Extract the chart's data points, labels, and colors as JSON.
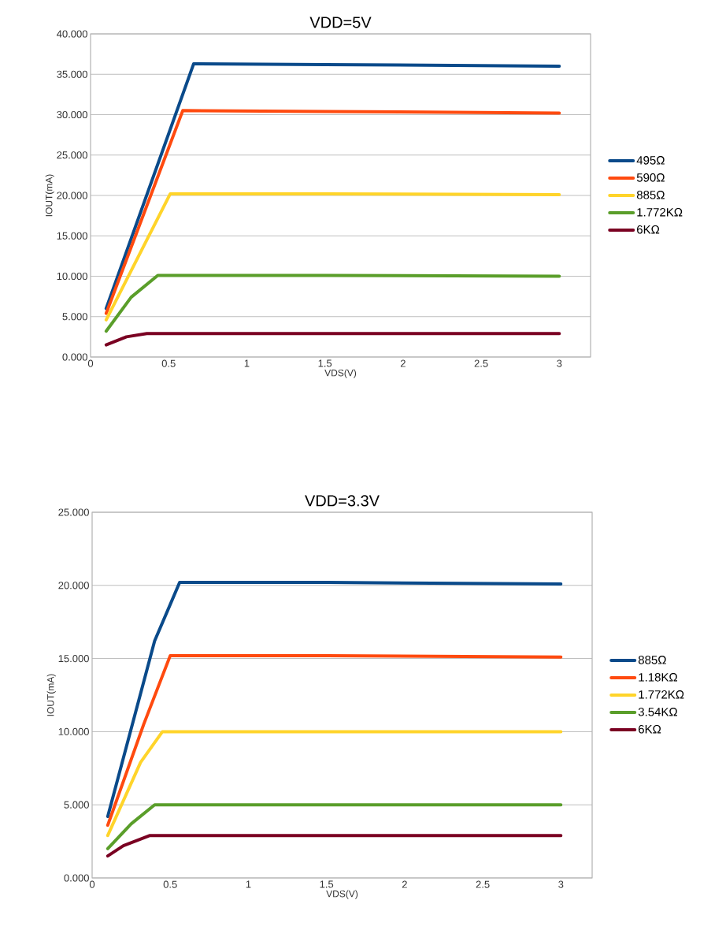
{
  "chart_data": [
    {
      "type": "line",
      "title": "VDD=5V",
      "xlabel": "VDS(V)",
      "ylabel": "IOUT(mA)",
      "xlim": [
        0,
        3.2
      ],
      "ylim": [
        0,
        40
      ],
      "xticks": [
        0,
        0.5,
        1,
        1.5,
        2,
        2.5,
        3
      ],
      "yticks": [
        {
          "value": 0,
          "label": "0.000"
        },
        {
          "value": 5,
          "label": "5.000"
        },
        {
          "value": 10,
          "label": "10.000"
        },
        {
          "value": 15,
          "label": "15.000"
        },
        {
          "value": 20,
          "label": "20.000"
        },
        {
          "value": 25,
          "label": "25.000"
        },
        {
          "value": 30,
          "label": "30.000"
        },
        {
          "value": 35,
          "label": "35.000"
        },
        {
          "value": 40,
          "label": "40.000"
        }
      ],
      "grid": "y",
      "legend": "right",
      "marker": "none",
      "line_style": "solid",
      "series": [
        {
          "name": "495Ω",
          "color": "#0a4a8a",
          "x": [
            0.1,
            0.66,
            1.5,
            3
          ],
          "values": [
            6.0,
            36.3,
            36.2,
            36.0
          ]
        },
        {
          "name": "590Ω",
          "color": "#ff4a0f",
          "x": [
            0.1,
            0.59,
            1.5,
            3
          ],
          "values": [
            5.4,
            30.5,
            30.4,
            30.2
          ]
        },
        {
          "name": "885Ω",
          "color": "#ffd42a",
          "x": [
            0.1,
            0.51,
            1.5,
            3
          ],
          "values": [
            4.6,
            20.2,
            20.2,
            20.1
          ]
        },
        {
          "name": "1.772KΩ",
          "color": "#5a9e2a",
          "x": [
            0.1,
            0.26,
            0.43,
            1.5,
            3
          ],
          "values": [
            3.2,
            7.4,
            10.1,
            10.1,
            10.0
          ]
        },
        {
          "name": "6KΩ",
          "color": "#7a0022",
          "x": [
            0.1,
            0.23,
            0.36,
            1.5,
            3
          ],
          "values": [
            1.5,
            2.5,
            2.9,
            2.9,
            2.9
          ]
        }
      ]
    },
    {
      "type": "line",
      "title": "VDD=3.3V",
      "xlabel": "VDS(V)",
      "ylabel": "IOUT(mA)",
      "xlim": [
        0,
        3.2
      ],
      "ylim": [
        0,
        25
      ],
      "xticks": [
        0,
        0.5,
        1,
        1.5,
        2,
        2.5,
        3
      ],
      "yticks": [
        {
          "value": 0,
          "label": "0.000"
        },
        {
          "value": 5,
          "label": "5.000"
        },
        {
          "value": 10,
          "label": "10.000"
        },
        {
          "value": 15,
          "label": "15.000"
        },
        {
          "value": 20,
          "label": "20.000"
        },
        {
          "value": 25,
          "label": "25.000"
        }
      ],
      "grid": "y",
      "legend": "right",
      "marker": "none",
      "line_style": "solid",
      "series": [
        {
          "name": "885Ω",
          "color": "#0a4a8a",
          "x": [
            0.1,
            0.4,
            0.56,
            1.5,
            3
          ],
          "values": [
            4.2,
            16.2,
            20.2,
            20.2,
            20.1
          ]
        },
        {
          "name": "1.18KΩ",
          "color": "#ff4a0f",
          "x": [
            0.1,
            0.33,
            0.5,
            1.5,
            3
          ],
          "values": [
            3.6,
            10.5,
            15.2,
            15.2,
            15.1
          ]
        },
        {
          "name": "1.772KΩ",
          "color": "#ffd42a",
          "x": [
            0.1,
            0.31,
            0.45,
            1.5,
            3
          ],
          "values": [
            2.9,
            7.9,
            10.0,
            10.0,
            10.0
          ]
        },
        {
          "name": "3.54KΩ",
          "color": "#5a9e2a",
          "x": [
            0.1,
            0.25,
            0.4,
            1.5,
            3
          ],
          "values": [
            2.0,
            3.7,
            5.0,
            5.0,
            5.0
          ]
        },
        {
          "name": "6KΩ",
          "color": "#7a0022",
          "x": [
            0.1,
            0.2,
            0.37,
            1.5,
            3
          ],
          "values": [
            1.5,
            2.2,
            2.9,
            2.9,
            2.9
          ]
        }
      ]
    }
  ]
}
